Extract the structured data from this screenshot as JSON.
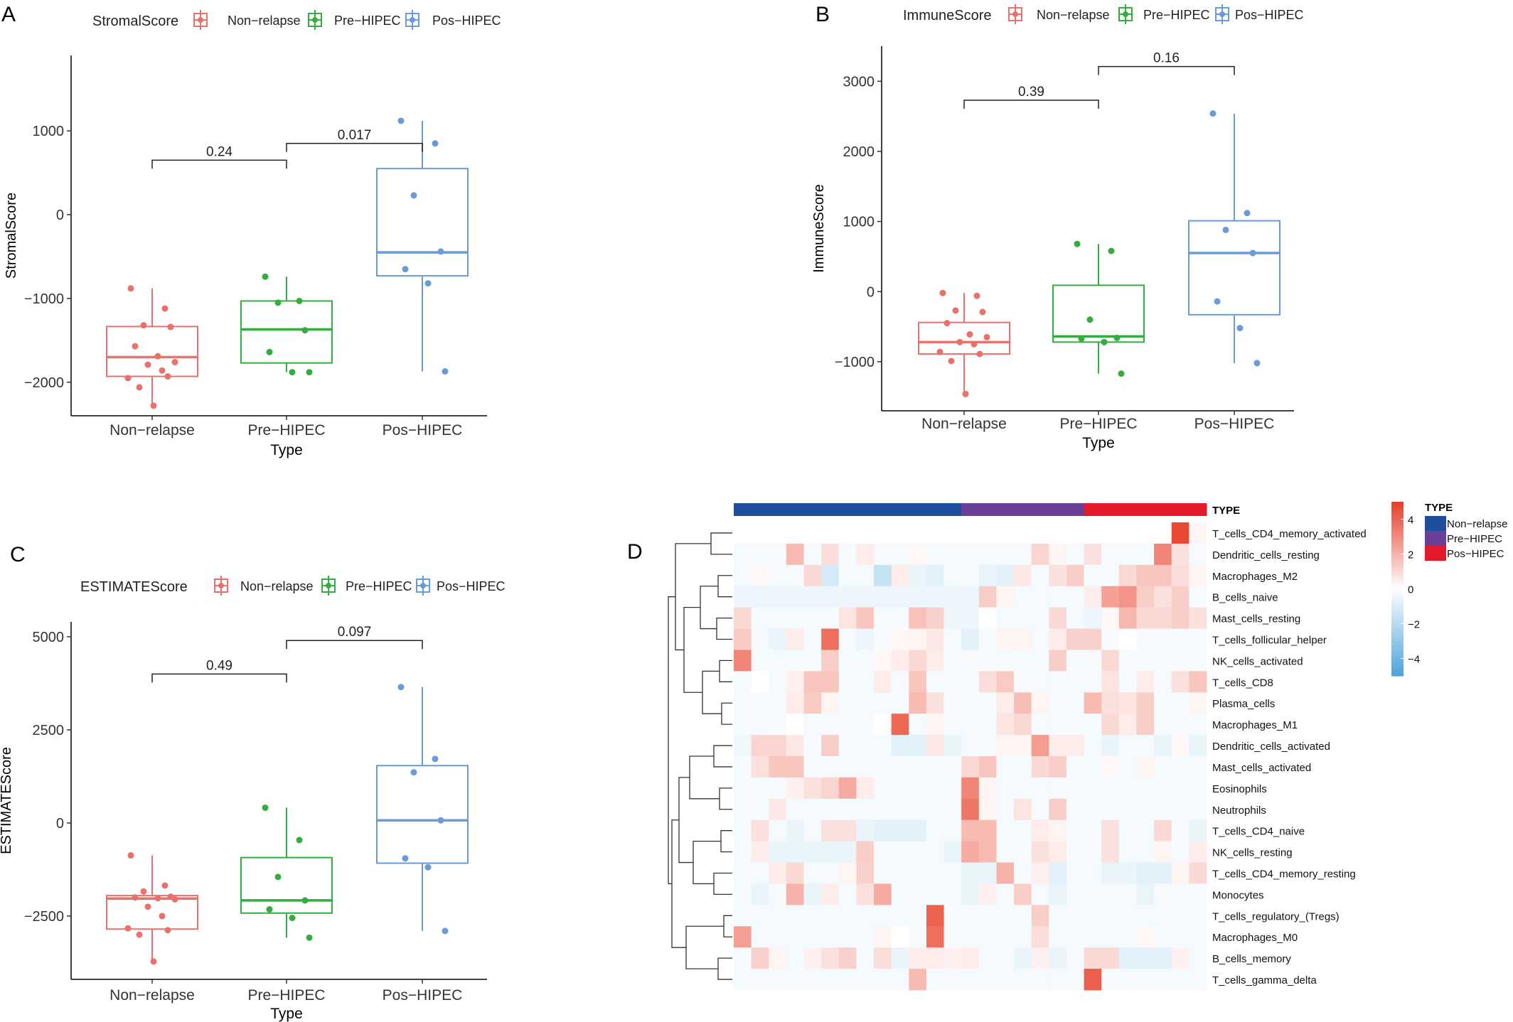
{
  "chart_data": [
    {
      "panel": "A",
      "type": "box",
      "legend_title": "StromalScore",
      "ylabel": "StromalScore",
      "xlabel": "Type",
      "categories": [
        "Non−relapse",
        "Pre−HIPEC",
        "Pos−HIPEC"
      ],
      "colors": [
        "#e8726b",
        "#33ad3f",
        "#6a9bd6"
      ],
      "ylim": [
        -2400,
        1900
      ],
      "yticks": [
        -2000,
        -1000,
        0,
        1000
      ],
      "ytick_labels": [
        "−2000",
        "−1000",
        "0",
        "1000"
      ],
      "boxes": [
        {
          "q1": -1930,
          "median": -1700,
          "q3": -1335,
          "whisker_low": -2280,
          "whisker_high": -880
        },
        {
          "q1": -1770,
          "median": -1370,
          "q3": -1030,
          "whisker_low": -1880,
          "whisker_high": -740
        },
        {
          "q1": -730,
          "median": -450,
          "q3": 550,
          "whisker_low": -1870,
          "whisker_high": 1120
        }
      ],
      "points": [
        [
          -880,
          -1120,
          -1320,
          -1340,
          -1570,
          -1690,
          -1760,
          -1790,
          -1860,
          -1950,
          -1930,
          -2060,
          -2280
        ],
        [
          -740,
          -1030,
          -1050,
          -1380,
          -1640,
          -1880,
          -1880
        ],
        [
          1120,
          850,
          230,
          -440,
          -650,
          -820,
          -1870
        ]
      ],
      "comparisons": [
        {
          "between": [
            0,
            1
          ],
          "label": "0.24",
          "y": 650
        },
        {
          "between": [
            1,
            2
          ],
          "label": "0.017",
          "y": 850
        }
      ]
    },
    {
      "panel": "B",
      "type": "box",
      "legend_title": "ImmuneScore",
      "ylabel": "ImmuneScore",
      "xlabel": "Type",
      "categories": [
        "Non−relapse",
        "Pre−HIPEC",
        "Pos−HIPEC"
      ],
      "colors": [
        "#e8726b",
        "#33ad3f",
        "#6a9bd6"
      ],
      "ylim": [
        -1700,
        3500
      ],
      "yticks": [
        -1000,
        0,
        1000,
        2000,
        3000
      ],
      "ytick_labels": [
        "−1000",
        "0",
        "1000",
        "2000",
        "3000"
      ],
      "boxes": [
        {
          "q1": -890,
          "median": -720,
          "q3": -440,
          "whisker_low": -1460,
          "whisker_high": -20
        },
        {
          "q1": -720,
          "median": -640,
          "q3": 90,
          "whisker_low": -1170,
          "whisker_high": 680
        },
        {
          "q1": -330,
          "median": 550,
          "q3": 1010,
          "whisker_low": -1020,
          "whisker_high": 2540
        }
      ],
      "points": [
        [
          -20,
          -60,
          -270,
          -290,
          -450,
          -610,
          -650,
          -720,
          -750,
          -860,
          -890,
          -990,
          -1460
        ],
        [
          680,
          580,
          -400,
          -660,
          -670,
          -720,
          -1170
        ],
        [
          2540,
          1120,
          880,
          550,
          -140,
          -520,
          -1020
        ]
      ],
      "comparisons": [
        {
          "between": [
            0,
            1
          ],
          "label": "0.39",
          "y": 2730
        },
        {
          "between": [
            1,
            2
          ],
          "label": "0.16",
          "y": 3210
        }
      ]
    },
    {
      "panel": "C",
      "type": "box",
      "legend_title": "ESTIMATEScore",
      "ylabel": "ESTIMATEScore",
      "xlabel": "Type",
      "categories": [
        "Non−relapse",
        "Pre−HIPEC",
        "Pos−HIPEC"
      ],
      "colors": [
        "#e8726b",
        "#33ad3f",
        "#6a9bd6"
      ],
      "ylim": [
        -4200,
        5400
      ],
      "yticks": [
        -2500,
        0,
        2500,
        5000
      ],
      "ytick_labels": [
        "−2500",
        "0",
        "2500",
        "5000"
      ],
      "boxes": [
        {
          "q1": -2850,
          "median": -2030,
          "q3": -1950,
          "whisker_low": -3720,
          "whisker_high": -870
        },
        {
          "q1": -2420,
          "median": -2080,
          "q3": -930,
          "whisker_low": -3080,
          "whisker_high": 410
        },
        {
          "q1": -1080,
          "median": 70,
          "q3": 1540,
          "whisker_low": -2900,
          "whisker_high": 3650
        }
      ],
      "points": [
        [
          -870,
          -1680,
          -1840,
          -1980,
          -2000,
          -2020,
          -2050,
          -2250,
          -2500,
          -2830,
          -2880,
          -3000,
          -3720
        ],
        [
          410,
          -460,
          -1450,
          -2080,
          -2320,
          -2550,
          -3080
        ],
        [
          3650,
          1720,
          1360,
          70,
          -950,
          -1190,
          -2900
        ]
      ],
      "comparisons": [
        {
          "between": [
            0,
            1
          ],
          "label": "0.49",
          "y": 4000
        },
        {
          "between": [
            1,
            2
          ],
          "label": "0.097",
          "y": 4900
        }
      ]
    },
    {
      "panel": "D",
      "type": "heatmap",
      "annotation_label": "TYPE",
      "annotation_legend_title": "TYPE",
      "annotation_groups": [
        {
          "name": "Non−relapse",
          "color": "#1f4e9d",
          "count": 13
        },
        {
          "name": "Pre−HIPEC",
          "color": "#6b3f99",
          "count": 7
        },
        {
          "name": "Pos−HIPEC",
          "color": "#e41a2b",
          "count": 7
        }
      ],
      "rows": [
        "T_cells_CD4_memory_activated",
        "Dendritic_cells_resting",
        "Macrophages_M2",
        "B_cells_naive",
        "Mast_cells_resting",
        "T_cells_follicular_helper",
        "NK_cells_activated",
        "T_cells_CD8",
        "Plasma_cells",
        "Macrophages_M1",
        "Dendritic_cells_activated",
        "Mast_cells_activated",
        "Eosinophils",
        "Neutrophils",
        "T_cells_CD4_naive",
        "NK_cells_resting",
        "T_cells_CD4_memory_resting",
        "Monocytes",
        "T_cells_regulatory_(Tregs)",
        "Macrophages_M0",
        "B_cells_memory",
        "T_cells_gamma_delta"
      ],
      "color_scale": {
        "min": -5,
        "max": 5,
        "low": "#4da6de",
        "mid": "#ffffff",
        "high": "#e8412a"
      },
      "colorbar_ticks": [
        4,
        2,
        0,
        -2,
        -4
      ],
      "colorbar_tick_labels": [
        "4",
        "2",
        "0",
        "−2",
        "−4"
      ],
      "values": [
        [
          0,
          0,
          0,
          0,
          0,
          0,
          0,
          0,
          0,
          0,
          0,
          0,
          0,
          0,
          0,
          0,
          0,
          0,
          0,
          0,
          0,
          0,
          0,
          0,
          0,
          4.8,
          0.3
        ],
        [
          -0.3,
          -0.3,
          -0.3,
          1.8,
          -0.3,
          0.9,
          -0.3,
          0.5,
          -0.3,
          -0.3,
          0.2,
          -0.3,
          -0.3,
          -0.3,
          -0.3,
          -0.3,
          -0.3,
          1.1,
          0.3,
          -0.3,
          0.8,
          -0.3,
          -0.3,
          -0.3,
          3.2,
          0.8,
          -0.3
        ],
        [
          -0.3,
          0.2,
          -0.3,
          -0.3,
          1.0,
          -1.2,
          -0.3,
          -0.3,
          -1.6,
          0.5,
          -0.6,
          -0.8,
          -0.3,
          -0.2,
          -0.6,
          -0.8,
          0.6,
          -0.3,
          0.8,
          1.3,
          -0.3,
          -0.3,
          1.0,
          1.5,
          1.5,
          0.9,
          0.3
        ],
        [
          -0.5,
          -0.5,
          -0.5,
          -0.5,
          -0.5,
          -0.5,
          -0.5,
          -0.5,
          -0.5,
          -0.5,
          -0.5,
          -0.5,
          -0.5,
          -0.5,
          1.3,
          0.3,
          -0.3,
          -0.3,
          -0.3,
          -0.3,
          0.5,
          2.5,
          2.8,
          1.3,
          0.8,
          1.3,
          -0.2
        ],
        [
          1.0,
          -0.3,
          -0.3,
          -0.3,
          -0.3,
          -0.3,
          0.7,
          1.5,
          -0.3,
          -0.3,
          1.6,
          1.2,
          -0.5,
          -0.5,
          0.0,
          -0.3,
          -0.3,
          -0.3,
          1.0,
          -0.3,
          -0.5,
          0.2,
          1.9,
          1.0,
          1.0,
          1.3,
          0.8
        ],
        [
          1.4,
          -0.3,
          -0.6,
          0.5,
          -0.3,
          3.8,
          -0.3,
          -0.5,
          -0.2,
          0.2,
          0.3,
          0.6,
          -0.3,
          -0.8,
          -0.2,
          0.3,
          0.3,
          -0.3,
          0.5,
          1.2,
          1.2,
          -0.2,
          0.0,
          -0.3,
          -0.3,
          -0.3,
          -0.3
        ],
        [
          3.2,
          -0.3,
          -0.3,
          -0.3,
          -0.3,
          1.3,
          -0.3,
          -0.3,
          0.2,
          0.5,
          1.0,
          0.5,
          -0.2,
          -0.2,
          -0.2,
          -0.3,
          -0.3,
          -0.3,
          1.3,
          -0.3,
          -0.2,
          1.0,
          -0.2,
          -0.2,
          -0.2,
          -0.2,
          -0.2
        ],
        [
          -0.3,
          0.0,
          -0.3,
          0.4,
          1.5,
          1.5,
          -0.3,
          -0.3,
          0.5,
          -0.3,
          1.5,
          -0.3,
          -0.3,
          -0.3,
          0.9,
          1.4,
          -0.2,
          -0.3,
          -0.3,
          -0.3,
          -0.3,
          0.7,
          -0.3,
          0.5,
          -0.3,
          0.8,
          1.5
        ],
        [
          -0.3,
          -0.3,
          -0.3,
          0.5,
          1.4,
          0.3,
          -0.3,
          -0.3,
          -0.3,
          -0.3,
          1.8,
          0.8,
          -0.2,
          -0.3,
          -0.3,
          0.5,
          1.7,
          0.3,
          -0.3,
          -0.3,
          1.8,
          0.8,
          0.7,
          1.3,
          -0.3,
          -0.3,
          0.3
        ],
        [
          -0.3,
          -0.3,
          -0.3,
          0.0,
          -0.3,
          -0.3,
          -0.3,
          -0.3,
          0.0,
          4.0,
          -0.3,
          0.3,
          -0.3,
          -0.3,
          -0.3,
          0.7,
          1.0,
          -0.3,
          -0.3,
          -0.3,
          -0.3,
          1.0,
          0.5,
          1.3,
          -0.3,
          -0.3,
          -0.3
        ],
        [
          -0.4,
          1.1,
          1.1,
          0.6,
          -0.3,
          1.3,
          -0.3,
          -0.3,
          -0.3,
          -0.8,
          -0.8,
          0.6,
          -0.6,
          -0.3,
          -0.3,
          0.3,
          0.3,
          2.6,
          0.5,
          0.5,
          -0.3,
          -0.6,
          -0.3,
          -0.3,
          -0.6,
          0.2,
          -0.6
        ],
        [
          -0.3,
          0.8,
          1.5,
          1.5,
          -0.3,
          -0.3,
          -0.3,
          -0.3,
          -0.3,
          -0.3,
          -0.3,
          -0.3,
          -0.3,
          1.0,
          1.5,
          -0.3,
          -0.3,
          1.0,
          1.3,
          -0.3,
          -0.3,
          0.2,
          -0.3,
          0.3,
          -0.3,
          -0.3,
          -0.3
        ],
        [
          -0.3,
          -0.3,
          -0.3,
          0.4,
          0.8,
          1.1,
          2.2,
          0.5,
          -0.3,
          -0.3,
          -0.3,
          -0.3,
          -0.3,
          3.2,
          0.3,
          -0.3,
          -0.3,
          -0.3,
          -0.3,
          -0.3,
          -0.3,
          -0.3,
          -0.3,
          -0.3,
          -0.3,
          -0.3,
          -0.3
        ],
        [
          -0.3,
          -0.3,
          0.6,
          -0.3,
          -0.3,
          -0.3,
          -0.3,
          -0.3,
          -0.3,
          -0.3,
          -0.3,
          -0.3,
          -0.3,
          3.6,
          0.3,
          -0.3,
          0.7,
          -0.3,
          1.3,
          -0.3,
          -0.3,
          -0.3,
          -0.3,
          -0.3,
          -0.3,
          -0.3,
          -0.3
        ],
        [
          -0.3,
          0.8,
          -0.3,
          -0.6,
          -0.3,
          0.8,
          0.8,
          -0.6,
          -0.8,
          -0.8,
          -0.8,
          -0.3,
          -0.3,
          1.8,
          1.8,
          -0.3,
          -0.3,
          0.5,
          0.3,
          -0.3,
          -0.3,
          0.8,
          -0.3,
          -0.3,
          1.0,
          -0.3,
          -0.6
        ],
        [
          -0.3,
          0.5,
          -0.6,
          -0.6,
          -0.6,
          -0.6,
          -0.6,
          1.3,
          -0.3,
          -0.3,
          -0.3,
          -0.3,
          -0.6,
          2.2,
          1.8,
          -0.3,
          -0.3,
          0.8,
          0.5,
          -0.3,
          -0.3,
          0.8,
          -0.3,
          -0.3,
          0.3,
          -0.3,
          0.5
        ],
        [
          -0.3,
          -0.3,
          0.5,
          1.0,
          -0.3,
          -0.3,
          0.3,
          1.2,
          -0.3,
          -0.3,
          -0.3,
          -0.3,
          -0.3,
          -0.6,
          -0.6,
          2.0,
          -0.3,
          0.4,
          -0.8,
          -0.3,
          -0.3,
          -0.6,
          -0.6,
          -0.8,
          -0.8,
          0.3,
          1.0
        ],
        [
          -0.3,
          -0.6,
          -0.3,
          2.0,
          -0.6,
          0.5,
          -0.3,
          0.8,
          2.2,
          -0.3,
          -0.3,
          -0.3,
          -0.3,
          -0.6,
          0.4,
          -0.3,
          1.3,
          -0.3,
          -0.6,
          -0.3,
          -0.3,
          -0.3,
          -0.3,
          -0.6,
          -0.3,
          -0.3,
          -0.3
        ],
        [
          -0.3,
          -0.3,
          -0.3,
          -0.3,
          -0.3,
          -0.3,
          -0.3,
          -0.3,
          -0.3,
          -0.3,
          -0.3,
          4.1,
          -0.3,
          -0.3,
          -0.3,
          -0.3,
          -0.3,
          1.3,
          -0.3,
          -0.3,
          -0.3,
          -0.3,
          -0.3,
          -0.3,
          -0.3,
          -0.3,
          -0.3
        ],
        [
          2.5,
          -0.3,
          -0.3,
          -0.3,
          -0.3,
          -0.3,
          -0.3,
          -0.3,
          0.3,
          0.0,
          -0.3,
          3.8,
          -0.3,
          -0.3,
          -0.3,
          -0.3,
          -0.3,
          0.9,
          -0.3,
          -0.3,
          -0.3,
          -0.3,
          -0.3,
          0.2,
          -0.3,
          -0.3,
          -0.3
        ],
        [
          -0.3,
          1.2,
          0.3,
          -0.3,
          0.4,
          0.8,
          1.2,
          -0.3,
          0.9,
          -0.6,
          0.5,
          0.5,
          0.4,
          0.5,
          -0.3,
          -0.3,
          -0.6,
          0.4,
          -0.6,
          -0.3,
          1.0,
          1.0,
          -0.8,
          -0.8,
          -0.8,
          0.4,
          -0.3
        ],
        [
          -0.3,
          -0.3,
          -0.3,
          -0.3,
          -0.3,
          -0.3,
          -0.3,
          -0.3,
          -0.3,
          -0.3,
          1.8,
          -0.3,
          -0.3,
          -0.3,
          -0.3,
          -0.3,
          -0.3,
          -0.3,
          -0.3,
          -0.3,
          4.2,
          -0.3,
          -0.3,
          -0.3,
          -0.3,
          -0.3,
          -0.3
        ]
      ]
    }
  ]
}
